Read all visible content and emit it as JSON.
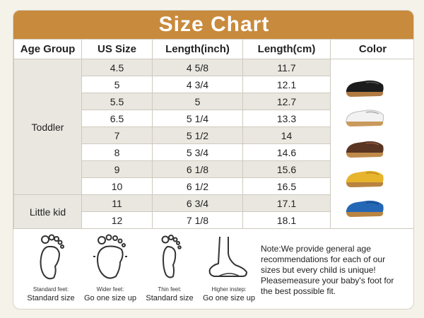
{
  "title": "Size Chart",
  "headers": [
    "Age Group",
    "US Size",
    "Length(inch)",
    "Length(cm)",
    "Color"
  ],
  "age_groups": [
    {
      "label": "Toddler",
      "rows": 8
    },
    {
      "label": "Little kid",
      "rows": 2
    }
  ],
  "rows": [
    {
      "us": "4.5",
      "inch": "4 5/8",
      "cm": "11.7"
    },
    {
      "us": "5",
      "inch": "4 3/4",
      "cm": "12.1"
    },
    {
      "us": "5.5",
      "inch": "5",
      "cm": "12.7"
    },
    {
      "us": "6.5",
      "inch": "5 1/4",
      "cm": "13.3"
    },
    {
      "us": "7",
      "inch": "5 1/2",
      "cm": "14"
    },
    {
      "us": "8",
      "inch": "5 3/4",
      "cm": "14.6"
    },
    {
      "us": "9",
      "inch": "6 1/8",
      "cm": "15.6"
    },
    {
      "us": "10",
      "inch": "6 1/2",
      "cm": "16.5"
    },
    {
      "us": "11",
      "inch": "6 3/4",
      "cm": "17.1"
    },
    {
      "us": "12",
      "inch": "7 1/8",
      "cm": "18.1"
    }
  ],
  "shoe_colors": [
    {
      "icon": "black-loafer-icon",
      "color": "#1c1c1c"
    },
    {
      "icon": "white-loafer-icon",
      "color": "#f2f2f2"
    },
    {
      "icon": "brown-loafer-icon",
      "color": "#5a3524"
    },
    {
      "icon": "yellow-loafer-icon",
      "color": "#e7b42c"
    },
    {
      "icon": "blue-loafer-icon",
      "color": "#2467b4"
    }
  ],
  "feet": [
    {
      "icon": "standard-foot-icon",
      "type": "Standard feet:",
      "advice": "Standard size"
    },
    {
      "icon": "wide-foot-icon",
      "type": "Wider feet:",
      "advice": "Go one size up"
    },
    {
      "icon": "thin-foot-icon",
      "type": "Thin feet:",
      "advice": "Standard size"
    },
    {
      "icon": "high-instep-foot-icon",
      "type": "Higher instep:",
      "advice": "Go one size up"
    }
  ],
  "note": "Note:We provide general age recommendations for each of our sizes but every child is unique! Pleasemeasure your baby's foot for the best possible fit.",
  "colors": {
    "accent": "#c88a3c",
    "shade": "#eae7e0",
    "border": "#cfcabf"
  }
}
